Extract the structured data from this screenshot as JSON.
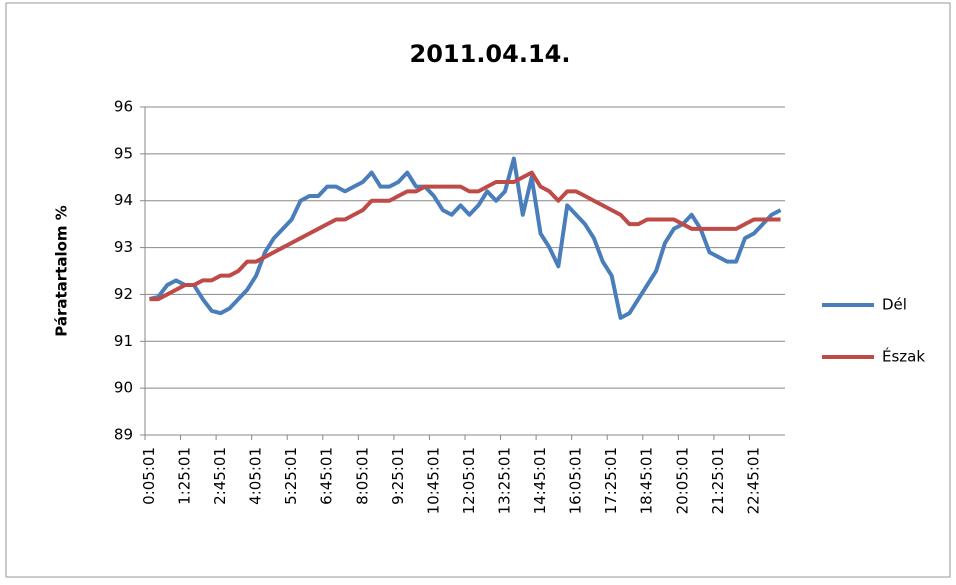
{
  "chart_data": {
    "type": "line",
    "title": "2011.04.14.",
    "y_label": "Páratartalom %",
    "categories": [
      "0:05:01",
      null,
      null,
      null,
      "1:25:01",
      null,
      null,
      null,
      "2:45:01",
      null,
      null,
      null,
      "4:05:01",
      null,
      null,
      null,
      "5:25:01",
      null,
      null,
      null,
      "6:45:01",
      null,
      null,
      null,
      "8:05:01",
      null,
      null,
      null,
      "9:25:01",
      null,
      null,
      null,
      "10:45:01",
      null,
      null,
      null,
      "12:05:01",
      null,
      null,
      null,
      "13:25:01",
      null,
      null,
      null,
      "14:45:01",
      null,
      null,
      null,
      "16:05:01",
      null,
      null,
      null,
      "17:25:01",
      null,
      null,
      null,
      "18:45:01",
      null,
      null,
      null,
      "20:05:01",
      null,
      null,
      null,
      "21:25:01",
      null,
      null,
      null,
      "22:45:01",
      null,
      null,
      null
    ],
    "series": [
      {
        "name": "Dél",
        "color": "#4a7ebb",
        "values": [
          91.9,
          91.95,
          92.2,
          92.3,
          92.2,
          92.2,
          91.9,
          91.65,
          91.6,
          91.7,
          91.9,
          92.1,
          92.4,
          92.9,
          93.2,
          93.4,
          93.6,
          94.0,
          94.1,
          94.1,
          94.3,
          94.3,
          94.2,
          94.3,
          94.4,
          94.6,
          94.3,
          94.3,
          94.4,
          94.6,
          94.3,
          94.3,
          94.1,
          93.8,
          93.7,
          93.9,
          93.7,
          93.9,
          94.2,
          94.0,
          94.2,
          94.9,
          93.7,
          94.5,
          93.3,
          93.0,
          92.6,
          93.9,
          93.7,
          93.5,
          93.2,
          92.7,
          92.4,
          91.5,
          91.6,
          91.9,
          92.2,
          92.5,
          93.1,
          93.4,
          93.5,
          93.7,
          93.4,
          92.9,
          92.8,
          92.7,
          92.7,
          93.2,
          93.3,
          93.5,
          93.7,
          93.8
        ]
      },
      {
        "name": "Észak",
        "color": "#be4b48",
        "values": [
          91.9,
          91.9,
          92.0,
          92.1,
          92.2,
          92.2,
          92.3,
          92.3,
          92.4,
          92.4,
          92.5,
          92.7,
          92.7,
          92.8,
          92.9,
          93.0,
          93.1,
          93.2,
          93.3,
          93.4,
          93.5,
          93.6,
          93.6,
          93.7,
          93.8,
          94.0,
          94.0,
          94.0,
          94.1,
          94.2,
          94.2,
          94.3,
          94.3,
          94.3,
          94.3,
          94.3,
          94.2,
          94.2,
          94.3,
          94.4,
          94.4,
          94.4,
          94.5,
          94.6,
          94.3,
          94.2,
          94.0,
          94.2,
          94.2,
          94.1,
          94.0,
          93.9,
          93.8,
          93.7,
          93.5,
          93.5,
          93.6,
          93.6,
          93.6,
          93.6,
          93.5,
          93.4,
          93.4,
          93.4,
          93.4,
          93.4,
          93.4,
          93.5,
          93.6,
          93.6,
          93.6,
          93.6
        ]
      }
    ],
    "ylim": [
      89,
      96
    ],
    "yticks": [
      89,
      90,
      91,
      92,
      93,
      94,
      95,
      96
    ],
    "grid": true,
    "legend": "right"
  }
}
